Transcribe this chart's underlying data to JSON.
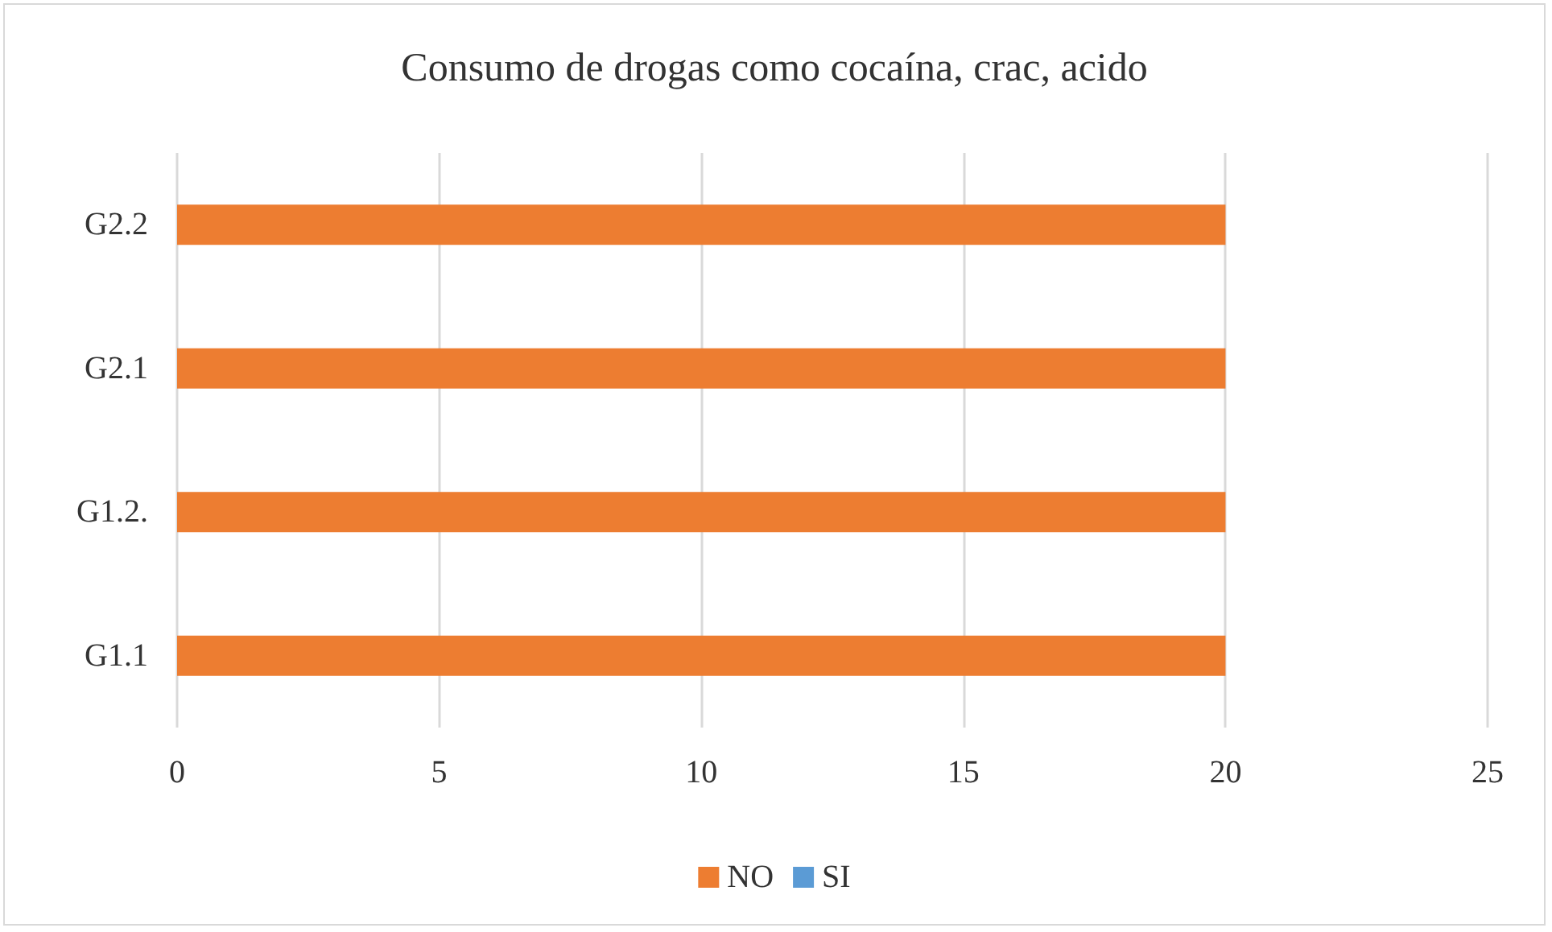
{
  "chart_data": {
    "type": "bar",
    "title": "Consumo de drogas como cocaína, crac, acido",
    "orientation": "horizontal",
    "stacked": true,
    "categories": [
      "G2.2",
      "G2.1",
      "G1.2.",
      "G1.1"
    ],
    "series": [
      {
        "name": "NO",
        "color": "#ed7d31",
        "values": [
          20,
          20,
          20,
          20
        ]
      },
      {
        "name": "SI",
        "color": "#5b9bd5",
        "values": [
          0,
          0,
          0,
          0
        ]
      }
    ],
    "xlim": [
      0,
      25
    ],
    "xticks": [
      0,
      5,
      10,
      15,
      20,
      25
    ],
    "grid": "x",
    "legend": "bottom"
  }
}
